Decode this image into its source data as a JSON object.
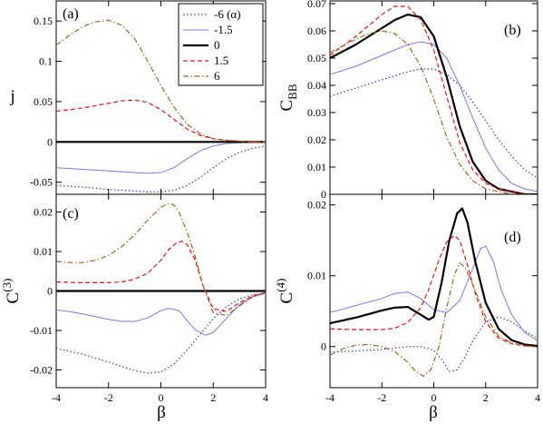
{
  "figure": {
    "legend": {
      "placement": "panel-a top-right",
      "entries": [
        {
          "label": "-6 (α)",
          "series_key": "-6",
          "color": "#3333cc",
          "dash": "dotted",
          "width": 1.2
        },
        {
          "label": "-1.5",
          "series_key": "-1.5",
          "color": "#7777ee",
          "dash": "solid",
          "width": 1
        },
        {
          "label": "0",
          "series_key": "0",
          "color": "#000000",
          "dash": "solid",
          "width": 2.2
        },
        {
          "label": "1.5",
          "series_key": "1.5",
          "color": "#ee1111",
          "dash": "dashed",
          "width": 1.2
        },
        {
          "label": "6",
          "series_key": "6",
          "color": "#a0661a",
          "dash": "dashdot",
          "width": 1.2
        }
      ]
    }
  },
  "chart_data": [
    {
      "type": "line",
      "panel": "(a)",
      "ylabel": "j",
      "xlabel": "",
      "xlim": [
        -4,
        4
      ],
      "ylim": [
        -0.065,
        0.175
      ],
      "xticks": [
        -4,
        -2,
        0,
        2,
        4
      ],
      "xtick_labels_shown": false,
      "yticks": [
        -0.05,
        0,
        0.05,
        0.1,
        0.15
      ],
      "ytick_labels": [
        "-0.05",
        "0",
        "0.05",
        "0.1",
        "0.15"
      ],
      "grid": false,
      "series": [
        {
          "key": "-6",
          "x": [
            -4,
            -3,
            -2,
            -1,
            -0.5,
            0,
            0.5,
            1,
            1.5,
            2,
            2.5,
            3,
            3.5,
            4
          ],
          "y": [
            -0.054,
            -0.056,
            -0.059,
            -0.061,
            -0.062,
            -0.062,
            -0.06,
            -0.054,
            -0.044,
            -0.032,
            -0.021,
            -0.013,
            -0.008,
            -0.005
          ]
        },
        {
          "key": "-1.5",
          "x": [
            -4,
            -3,
            -2,
            -1,
            -0.5,
            0,
            0.5,
            1,
            1.5,
            2,
            2.5,
            3,
            3.5,
            4
          ],
          "y": [
            -0.032,
            -0.034,
            -0.036,
            -0.038,
            -0.039,
            -0.038,
            -0.032,
            -0.021,
            -0.011,
            -0.005,
            -0.002,
            -0.001,
            0,
            0
          ]
        },
        {
          "key": "0",
          "x": [
            -4,
            4
          ],
          "y": [
            0,
            0
          ]
        },
        {
          "key": "1.5",
          "x": [
            -4,
            -3,
            -2,
            -1.5,
            -1,
            -0.5,
            0,
            0.5,
            1,
            1.5,
            2,
            2.5,
            3,
            3.5,
            4
          ],
          "y": [
            0.038,
            0.042,
            0.048,
            0.051,
            0.052,
            0.049,
            0.04,
            0.028,
            0.016,
            0.008,
            0.004,
            0.002,
            0.001,
            0,
            0
          ]
        },
        {
          "key": "6",
          "x": [
            -4,
            -3.5,
            -3,
            -2.5,
            -2,
            -1.5,
            -1,
            -0.5,
            0,
            0.5,
            1,
            1.5,
            2,
            2.5,
            3,
            3.5,
            4
          ],
          "y": [
            0.12,
            0.132,
            0.143,
            0.149,
            0.151,
            0.145,
            0.128,
            0.1,
            0.07,
            0.043,
            0.022,
            0.01,
            0.004,
            0.002,
            0.001,
            0,
            0
          ]
        }
      ]
    },
    {
      "type": "line",
      "panel": "(b)",
      "ylabel": "C_BB",
      "xlabel": "",
      "xlim": [
        -4,
        4
      ],
      "ylim": [
        0,
        0.071
      ],
      "xticks": [
        -4,
        -2,
        0,
        2,
        4
      ],
      "xtick_labels_shown": false,
      "yticks": [
        0,
        0.01,
        0.02,
        0.03,
        0.04,
        0.05,
        0.06,
        0.07
      ],
      "ytick_labels": [
        "0",
        "0.01",
        "0.02",
        "0.03",
        "0.04",
        "0.05",
        "0.06",
        "0.07"
      ],
      "grid": false,
      "series": [
        {
          "key": "-6",
          "x": [
            -4,
            -3,
            -2,
            -1,
            -0.5,
            0,
            0.5,
            1,
            1.5,
            2,
            2.5,
            3,
            3.5,
            4
          ],
          "y": [
            0.036,
            0.039,
            0.042,
            0.045,
            0.046,
            0.046,
            0.044,
            0.04,
            0.034,
            0.027,
            0.02,
            0.014,
            0.009,
            0.006
          ]
        },
        {
          "key": "-1.5",
          "x": [
            -4,
            -3,
            -2,
            -1,
            -0.5,
            0,
            0.5,
            1,
            1.5,
            2,
            2.5,
            3,
            3.5,
            4
          ],
          "y": [
            0.044,
            0.047,
            0.051,
            0.055,
            0.056,
            0.055,
            0.05,
            0.04,
            0.028,
            0.017,
            0.009,
            0.004,
            0.002,
            0.001
          ]
        },
        {
          "key": "0",
          "x": [
            -4,
            -3,
            -2,
            -1.5,
            -1,
            -0.5,
            0,
            0.5,
            1,
            1.5,
            2,
            2.5,
            3,
            3.5,
            4
          ],
          "y": [
            0.05,
            0.055,
            0.061,
            0.064,
            0.066,
            0.065,
            0.058,
            0.043,
            0.025,
            0.012,
            0.005,
            0.002,
            0.001,
            0,
            0
          ]
        },
        {
          "key": "1.5",
          "x": [
            -4,
            -3,
            -2,
            -1.5,
            -1,
            -0.5,
            0,
            0.5,
            1,
            1.5,
            2,
            2.5,
            3,
            3.5,
            4
          ],
          "y": [
            0.051,
            0.058,
            0.066,
            0.069,
            0.069,
            0.064,
            0.053,
            0.036,
            0.019,
            0.009,
            0.004,
            0.002,
            0.001,
            0,
            0
          ]
        },
        {
          "key": "6",
          "x": [
            -4,
            -3,
            -2.5,
            -2,
            -1.5,
            -1,
            -0.5,
            0,
            0.5,
            1,
            1.5,
            2,
            2.5,
            3,
            3.5,
            4
          ],
          "y": [
            0.052,
            0.057,
            0.059,
            0.06,
            0.059,
            0.055,
            0.047,
            0.035,
            0.021,
            0.011,
            0.005,
            0.002,
            0.001,
            0,
            0,
            0
          ]
        }
      ]
    },
    {
      "type": "line",
      "panel": "(c)",
      "ylabel": "C^(3)",
      "xlabel": "β",
      "xlim": [
        -4,
        4
      ],
      "ylim": [
        -0.0245,
        0.0245
      ],
      "xticks": [
        -4,
        -2,
        0,
        2,
        4
      ],
      "xtick_labels": [
        "-4",
        "-2",
        "0",
        "2",
        "4"
      ],
      "yticks": [
        -0.02,
        -0.01,
        0,
        0.01,
        0.02
      ],
      "ytick_labels": [
        "-0.02",
        "-0.01",
        "0",
        "0.01",
        "0.02"
      ],
      "grid": false,
      "series": [
        {
          "key": "-6",
          "x": [
            -4,
            -3,
            -2,
            -1,
            -0.5,
            0,
            0.5,
            1,
            1.5,
            2,
            2.5,
            3,
            3.5,
            4
          ],
          "y": [
            -0.0145,
            -0.016,
            -0.018,
            -0.0202,
            -0.0208,
            -0.0205,
            -0.0185,
            -0.015,
            -0.011,
            -0.007,
            -0.004,
            -0.002,
            -0.001,
            -0.0005
          ]
        },
        {
          "key": "-1.5",
          "x": [
            -4,
            -3.5,
            -3,
            -2.5,
            -2,
            -1.5,
            -1,
            -0.5,
            0,
            0.3,
            0.7,
            1,
            1.3,
            1.7,
            2,
            2.5,
            3,
            3.5,
            4
          ],
          "y": [
            -0.0048,
            -0.0052,
            -0.0058,
            -0.0065,
            -0.0072,
            -0.0077,
            -0.0077,
            -0.0068,
            -0.005,
            -0.0044,
            -0.005,
            -0.0075,
            -0.0098,
            -0.0112,
            -0.0105,
            -0.007,
            -0.0035,
            -0.0015,
            -0.0006
          ]
        },
        {
          "key": "0",
          "x": [
            -4,
            4
          ],
          "y": [
            0,
            0
          ]
        },
        {
          "key": "1.5",
          "x": [
            -4,
            -3,
            -2,
            -1.5,
            -1,
            -0.5,
            0,
            0.3,
            0.6,
            0.8,
            1,
            1.3,
            1.6,
            2,
            2.5,
            3,
            3.5,
            4
          ],
          "y": [
            0.0023,
            0.0021,
            0.0021,
            0.0023,
            0.003,
            0.0045,
            0.0078,
            0.0105,
            0.0122,
            0.0126,
            0.0118,
            0.008,
            0.0015,
            -0.0045,
            -0.0052,
            -0.003,
            -0.0012,
            -0.0004
          ]
        },
        {
          "key": "6",
          "x": [
            -4,
            -3.5,
            -3,
            -2.5,
            -2,
            -1.5,
            -1,
            -0.5,
            0,
            0.3,
            0.5,
            0.7,
            1,
            1.3,
            1.6,
            2,
            2.5,
            3,
            3.5,
            4
          ],
          "y": [
            0.0075,
            0.0072,
            0.0072,
            0.0078,
            0.009,
            0.0112,
            0.0142,
            0.018,
            0.0212,
            0.0222,
            0.0218,
            0.0198,
            0.015,
            0.009,
            0.0015,
            -0.0055,
            -0.0062,
            -0.0038,
            -0.0015,
            -0.0005
          ]
        }
      ]
    },
    {
      "type": "line",
      "panel": "(d)",
      "ylabel": "C^(4)",
      "xlabel": "β",
      "xlim": [
        -4,
        4
      ],
      "ylim": [
        -0.0058,
        0.0215
      ],
      "xticks": [
        -4,
        -2,
        0,
        2,
        4
      ],
      "xtick_labels": [
        "-4",
        "-2",
        "0",
        "2",
        "4"
      ],
      "yticks": [
        0,
        0.01,
        0.02
      ],
      "ytick_labels": [
        "0",
        "0.01",
        "0.02"
      ],
      "grid": false,
      "series": [
        {
          "key": "-6",
          "x": [
            -4,
            -3,
            -2,
            -1,
            -0.5,
            0,
            0.3,
            0.6,
            0.9,
            1.2,
            1.5,
            2,
            2.5,
            3,
            3.5,
            4
          ],
          "y": [
            -0.0008,
            -0.0006,
            -0.0004,
            0,
            0,
            -0.0005,
            -0.0018,
            -0.0035,
            -0.0033,
            -0.0015,
            0.0008,
            0.0035,
            0.0042,
            0.0035,
            0.0022,
            0.0012
          ]
        },
        {
          "key": "-1.5",
          "x": [
            -4,
            -3,
            -2,
            -1.5,
            -1,
            -0.5,
            0,
            0.5,
            1,
            1.5,
            1.8,
            2,
            2.3,
            2.6,
            3,
            3.5,
            4
          ],
          "y": [
            0.0048,
            0.0058,
            0.0068,
            0.0075,
            0.0077,
            0.0068,
            0.0052,
            0.0048,
            0.0065,
            0.011,
            0.0138,
            0.0142,
            0.012,
            0.008,
            0.0045,
            0.002,
            0.0008
          ]
        },
        {
          "key": "0",
          "x": [
            -4,
            -3,
            -2,
            -1.5,
            -1,
            -0.5,
            -0.2,
            0,
            0.3,
            0.6,
            0.9,
            1.1,
            1.3,
            1.6,
            2,
            2.5,
            3,
            3.5,
            4
          ],
          "y": [
            0.0033,
            0.0041,
            0.0051,
            0.0055,
            0.0056,
            0.0045,
            0.0038,
            0.0042,
            0.009,
            0.015,
            0.0188,
            0.0195,
            0.0175,
            0.012,
            0.0062,
            0.0025,
            0.0009,
            0.0003,
            0.0001
          ]
        },
        {
          "key": "1.5",
          "x": [
            -4,
            -3,
            -2,
            -1.5,
            -1,
            -0.5,
            -0.2,
            0.2,
            0.5,
            0.8,
            1,
            1.3,
            1.6,
            2,
            2.5,
            3,
            3.5,
            4
          ],
          "y": [
            0.0025,
            0.0024,
            0.0024,
            0.0026,
            0.0034,
            0.0055,
            0.008,
            0.0122,
            0.0148,
            0.0157,
            0.015,
            0.0115,
            0.0075,
            0.0035,
            0.0012,
            0.0004,
            0.0001,
            0
          ]
        },
        {
          "key": "6",
          "x": [
            -4,
            -3.5,
            -3,
            -2.5,
            -2,
            -1.5,
            -1,
            -0.7,
            -0.4,
            -0.1,
            0.2,
            0.5,
            0.8,
            1,
            1.2,
            1.5,
            2,
            2.5,
            3,
            3.5,
            4
          ],
          "y": [
            -0.0012,
            -0.0003,
            0.0002,
            0.0003,
            0,
            -0.0007,
            -0.0022,
            -0.0035,
            -0.0042,
            -0.0032,
            0,
            0.0055,
            0.0102,
            0.0118,
            0.0112,
            0.0088,
            0.0042,
            0.0015,
            0.0005,
            0.0001,
            0
          ]
        }
      ]
    }
  ]
}
